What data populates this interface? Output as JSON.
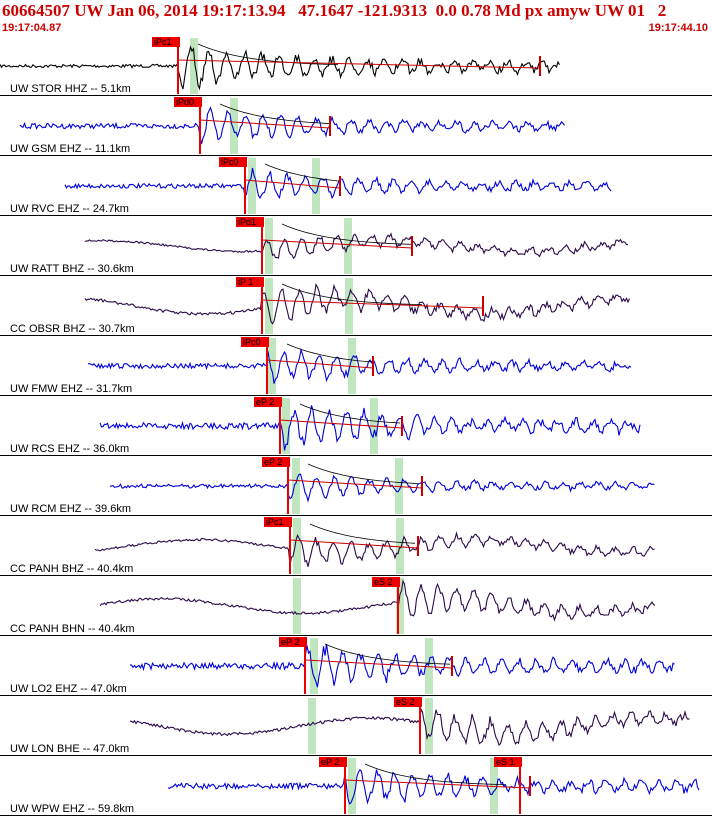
{
  "header": {
    "title": "60664507 UW Jan 06, 2014 19:17:13.94   47.1647 -121.9313  0.0 0.78 Md px amyw UW 01   2",
    "start_time": "19:17:04.87",
    "end_time": "19:17:44.10"
  },
  "colors": {
    "header_text": "#cc0000",
    "pick_fill": "#ee0000",
    "window_fill": "#bfe6bf",
    "trace_blue": "#0000dd",
    "trace_purple": "#2a0a4a",
    "trace_black": "#000000",
    "coda_line": "#cc0000"
  },
  "traces": [
    {
      "label": "UW STOR HHZ -- 5.1km",
      "color": "black",
      "pick": "iPc1",
      "s_pick": "",
      "amp": 1.0
    },
    {
      "label": "UW GSM EHZ -- 11.1km",
      "color": "blue",
      "pick": "iPd0",
      "s_pick": "",
      "amp": 0.8
    },
    {
      "label": "UW RVC EHZ -- 24.7km",
      "color": "blue",
      "pick": "iPc0",
      "s_pick": "",
      "amp": 0.7
    },
    {
      "label": "UW RATT BHZ -- 30.6km",
      "color": "purple",
      "pick": "iPd1",
      "s_pick": "",
      "amp": 0.6
    },
    {
      "label": "CC OBSR BHZ -- 30.7km",
      "color": "purple",
      "pick": "iP 1",
      "s_pick": "",
      "amp": 0.9
    },
    {
      "label": "UW FMW EHZ -- 31.7km",
      "color": "blue",
      "pick": "iPc0",
      "s_pick": "",
      "amp": 0.8
    },
    {
      "label": "UW RCS EHZ -- 36.0km",
      "color": "blue",
      "pick": "eP 2",
      "s_pick": "",
      "amp": 1.0
    },
    {
      "label": "UW RCM EHZ -- 39.6km",
      "color": "blue",
      "pick": "eP 2",
      "s_pick": "",
      "amp": 0.6
    },
    {
      "label": "CC PANH BHZ -- 40.4km",
      "color": "purple",
      "pick": "iPc1",
      "s_pick": "",
      "amp": 0.7
    },
    {
      "label": "CC PANH BHN -- 40.4km",
      "color": "purple",
      "pick": "",
      "s_pick": "eS 2",
      "amp": 0.8
    },
    {
      "label": "UW LO2 EHZ -- 47.0km",
      "color": "blue",
      "pick": "eP 2",
      "s_pick": "",
      "amp": 1.0
    },
    {
      "label": "UW LON BHE -- 47.0km",
      "color": "purple",
      "pick": "",
      "s_pick": "eS 2",
      "amp": 0.9
    },
    {
      "label": "UW WPW EHZ -- 59.8km",
      "color": "blue",
      "pick": "eP 2",
      "s_pick": "eS 1",
      "amp": 0.9
    }
  ]
}
